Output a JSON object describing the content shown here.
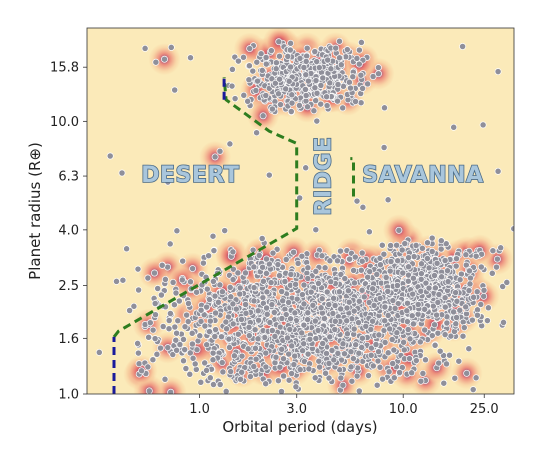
{
  "chart_data": {
    "type": "scatter",
    "title": "",
    "xlabel": "Orbital period (days)",
    "ylabel": "Planet radius (R⊕)",
    "x_scale": "log",
    "y_scale": "log",
    "xlim": [
      0.28,
      35
    ],
    "ylim": [
      1.0,
      22
    ],
    "x_ticks": [
      1.0,
      3.0,
      10.0,
      25.0
    ],
    "x_tick_labels": [
      "1.0",
      "3.0",
      "10.0",
      "25.0"
    ],
    "y_ticks": [
      1.0,
      1.6,
      2.5,
      4.0,
      6.3,
      10.0,
      15.8
    ],
    "y_tick_labels": [
      "1.0",
      "1.6",
      "2.5",
      "4.0",
      "6.3",
      "10.0",
      "15.8"
    ],
    "grid": false,
    "regions": [
      {
        "label": "DESERT",
        "x": 0.9,
        "y": 6.3,
        "rotation": 0
      },
      {
        "label": "RIDGE",
        "x": 4.1,
        "y": 6.3,
        "rotation": -90
      },
      {
        "label": "SAVANNA",
        "x": 12.5,
        "y": 6.3,
        "rotation": 0
      }
    ],
    "boundaries": [
      {
        "name": "desert-boundary",
        "color": "#2e7d1f",
        "style": "dashed",
        "points": [
          [
            0.38,
            1.62
          ],
          [
            0.4,
            1.7
          ],
          [
            3.0,
            4.05
          ],
          [
            3.0,
            8.3
          ],
          [
            2.2,
            9.2
          ],
          [
            1.35,
            12.0
          ],
          [
            1.32,
            14.5
          ]
        ]
      },
      {
        "name": "ridge-boundary",
        "color": "#2e7d1f",
        "style": "dashed",
        "points": [
          [
            5.7,
            5.3
          ],
          [
            5.7,
            7.3
          ],
          [
            5.5,
            7.3
          ]
        ]
      },
      {
        "name": "upper-highlight",
        "color": "#1a1a9c",
        "style": "dashed",
        "points": [
          [
            1.32,
            12.0
          ],
          [
            1.32,
            14.8
          ]
        ]
      },
      {
        "name": "lower-highlight",
        "color": "#1a1a9c",
        "style": "dashed",
        "points": [
          [
            0.38,
            1.0
          ],
          [
            0.38,
            1.62
          ]
        ]
      }
    ],
    "density_clusters": [
      {
        "x": [
          0.3,
          35
        ],
        "y": [
          1.0,
          3.6
        ],
        "weight": 0.6
      },
      {
        "x": [
          5.0,
          35
        ],
        "y": [
          1.6,
          3.8
        ],
        "weight": 0.2
      },
      {
        "x": [
          1.2,
          9.0
        ],
        "y": [
          10.5,
          20.0
        ],
        "weight": 0.17
      },
      {
        "x": [
          0.3,
          35
        ],
        "y": [
          1.0,
          20.0
        ],
        "weight": 0.03
      }
    ],
    "point_count": 2600,
    "colors": {
      "background": "#fbeab9",
      "points": "#8f8f9a",
      "point_edge": "#ffffff",
      "density_low": "#f7c99a",
      "density_mid": "#e8706a",
      "density_high": "#6d1f7a",
      "region_label_fill": "#a9c6dc",
      "region_label_edge": "#4a6a86"
    }
  }
}
